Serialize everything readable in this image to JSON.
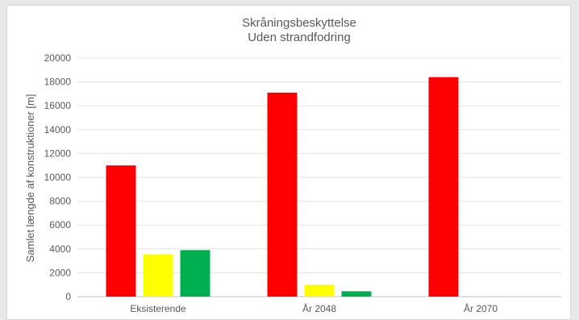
{
  "chart_data": {
    "type": "bar",
    "title": "Skråningsbeskyttelse",
    "subtitle": "Uden strandfodring",
    "ylabel": "Samlet længde af konstruktioner [m]",
    "xlabel": "",
    "ylim": [
      0,
      20000
    ],
    "yticks": [
      "0",
      "2000",
      "4000",
      "6000",
      "8000",
      "10000",
      "12000",
      "14000",
      "16000",
      "18000",
      "20000"
    ],
    "grid": true,
    "categories": [
      "Eksisterende",
      "År 2048",
      "År 2070"
    ],
    "series": [
      {
        "color": "#ff0000",
        "values": [
          11000,
          17100,
          18400
        ]
      },
      {
        "color": "#ffff00",
        "values": [
          3550,
          1000,
          0
        ]
      },
      {
        "color": "#00b050",
        "values": [
          3900,
          450,
          0
        ]
      }
    ]
  }
}
